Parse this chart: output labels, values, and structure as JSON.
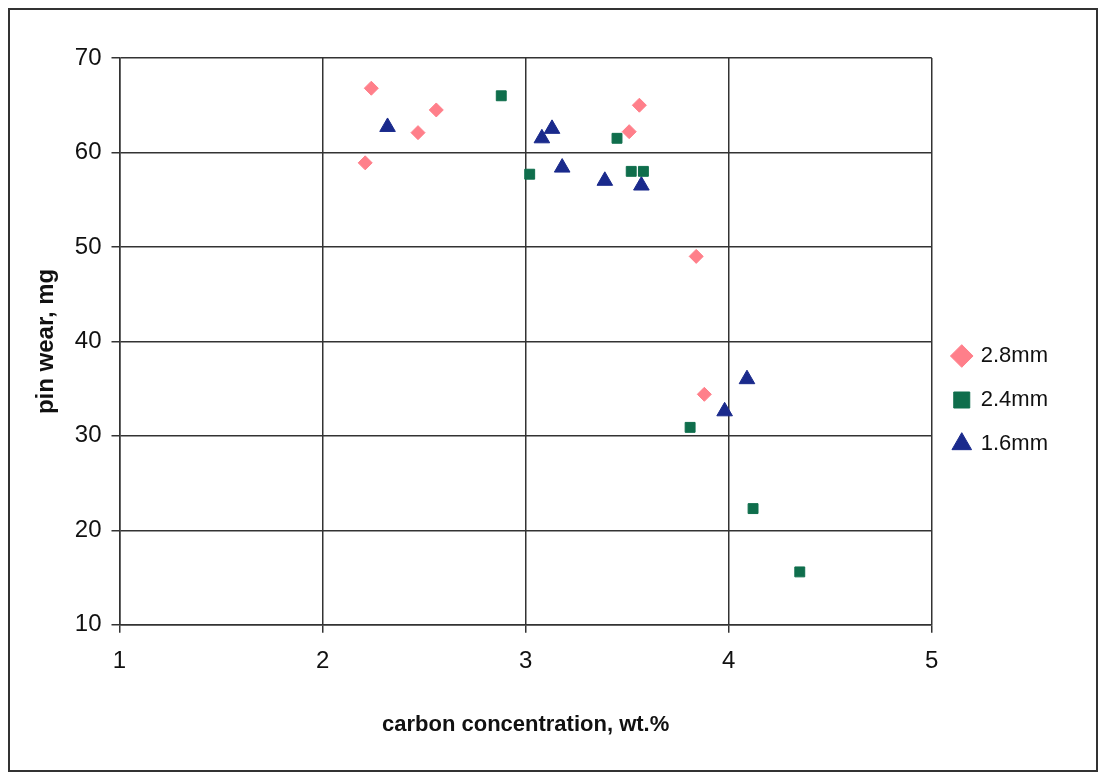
{
  "chart_data": {
    "type": "scatter",
    "xlabel": "carbon concentration, wt.%",
    "ylabel": "pin wear, mg",
    "xlim": [
      1,
      5
    ],
    "xticks": [
      1,
      2,
      3,
      4,
      5
    ],
    "ylim": [
      10,
      70
    ],
    "yticks": [
      10,
      20,
      30,
      40,
      50,
      60,
      70
    ],
    "grid": true,
    "legend": "right",
    "series": [
      {
        "name": "2.8mm",
        "color": "#ff7f8a",
        "marker": "diamond",
        "x": [
          2.24,
          2.21,
          2.47,
          2.56,
          3.56,
          3.51,
          3.84,
          3.88
        ],
        "values": [
          66.8,
          58.9,
          62.1,
          64.5,
          65.0,
          62.2,
          49.0,
          34.4
        ]
      },
      {
        "name": "2.4mm",
        "color": "#0f6e4c",
        "marker": "square",
        "x": [
          2.88,
          3.02,
          3.45,
          3.52,
          3.58,
          3.81,
          4.12,
          4.35
        ],
        "values": [
          66.0,
          57.7,
          61.5,
          58.0,
          58.0,
          30.9,
          22.3,
          15.6
        ]
      },
      {
        "name": "1.6mm",
        "color": "#1a2a8c",
        "marker": "triangle",
        "x": [
          2.32,
          3.08,
          3.13,
          3.18,
          3.39,
          3.57,
          4.09,
          3.98
        ],
        "values": [
          62.7,
          61.5,
          62.5,
          58.4,
          57.0,
          56.5,
          36.0,
          32.6
        ]
      }
    ]
  }
}
